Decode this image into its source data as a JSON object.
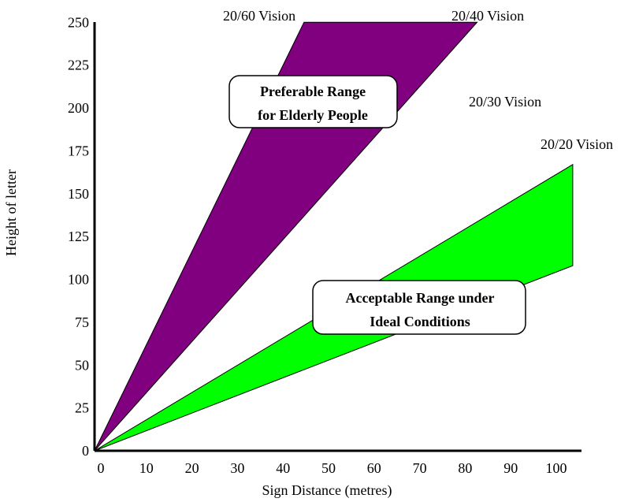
{
  "chart_data": {
    "type": "area",
    "xlabel": "Sign Distance (metres)",
    "ylabel": "Height  of  letter",
    "xlim": [
      0,
      105
    ],
    "ylim": [
      0,
      250
    ],
    "x_ticks": [
      "0",
      "10",
      "20",
      "30",
      "40",
      "50",
      "60",
      "70",
      "80",
      "90",
      "100"
    ],
    "y_ticks": [
      "0",
      "25",
      "50",
      "75",
      "100",
      "125",
      "150",
      "175",
      "200",
      "225",
      "250"
    ],
    "grid": false,
    "regions": [
      {
        "name": "Preferable Range for Elderly People",
        "color": "#800080",
        "polygon": [
          [
            0,
            0
          ],
          [
            46,
            250
          ],
          [
            84,
            250
          ],
          [
            0,
            0
          ]
        ]
      },
      {
        "name": "Acceptable Range under Ideal Conditions",
        "color": "#00ff00",
        "polygon": [
          [
            0,
            0
          ],
          [
            105,
            167
          ],
          [
            105,
            108
          ],
          [
            0,
            0
          ]
        ]
      }
    ],
    "annotations": [
      {
        "text": "20/60 Vision"
      },
      {
        "text": "20/40 Vision"
      },
      {
        "text": "20/30 Vision"
      },
      {
        "text": "20/20 Vision"
      }
    ],
    "callouts": [
      {
        "lines": [
          "Preferable Range",
          "for Elderly People"
        ]
      },
      {
        "lines": [
          "Acceptable Range under",
          "Ideal Conditions"
        ]
      }
    ]
  }
}
